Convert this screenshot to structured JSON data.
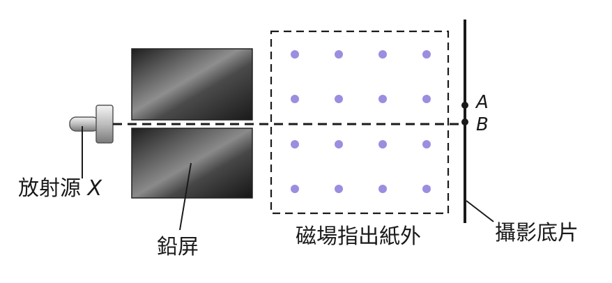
{
  "labels": {
    "source": "放射源",
    "source_symbol": "X",
    "lead_screen": "鉛屏",
    "magnetic_field": "磁場指出紙外",
    "film": "攝影底片",
    "point_a": "A",
    "point_b": "B"
  },
  "colors": {
    "field_dot": "#9a8ee0",
    "ink": "#1a1a1a",
    "lead_dark": "#2b2b2b",
    "lead_light": "#9a9a9a"
  },
  "field": {
    "rows": 4,
    "cols": 4
  }
}
